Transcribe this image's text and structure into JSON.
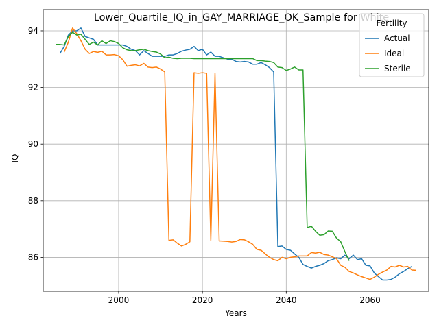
{
  "chart_data": {
    "type": "line",
    "title": "Lower_Quartile_IQ_in_GAY_MARRIAGE_OK_Sample for White",
    "xlabel": "Years",
    "ylabel": "IQ",
    "xlim": [
      1982,
      2074
    ],
    "ylim": [
      84.8,
      94.75
    ],
    "xticks": [
      2000,
      2020,
      2040,
      2060
    ],
    "yticks": [
      86,
      88,
      90,
      92,
      94
    ],
    "grid": true,
    "legend": {
      "title": "Fertility",
      "placement": "top-right"
    },
    "series": [
      {
        "name": "Actual",
        "color": "#1f77b4",
        "x": [
          1986,
          1987,
          1988,
          1989,
          1990,
          1991,
          1992,
          1993,
          1994,
          1995,
          1996,
          1997,
          1998,
          1999,
          2000,
          2001,
          2002,
          2003,
          2004,
          2005,
          2006,
          2007,
          2008,
          2009,
          2010,
          2011,
          2012,
          2013,
          2014,
          2015,
          2016,
          2017,
          2018,
          2019,
          2020,
          2021,
          2022,
          2023,
          2024,
          2025,
          2026,
          2027,
          2028,
          2029,
          2030,
          2031,
          2032,
          2033,
          2034,
          2035,
          2036,
          2037,
          2038,
          2039,
          2040,
          2041,
          2042,
          2043,
          2044,
          2045,
          2046,
          2047,
          2048,
          2049,
          2050,
          2051,
          2052,
          2053,
          2054,
          2055,
          2056,
          2057,
          2058,
          2059,
          2060,
          2061,
          2062,
          2063,
          2064,
          2065,
          2066,
          2067,
          2068,
          2069,
          2070
        ],
        "values": [
          93.2,
          93.45,
          93.85,
          94.0,
          94.0,
          94.1,
          93.8,
          93.75,
          93.7,
          93.5,
          93.5,
          93.5,
          93.5,
          93.5,
          93.5,
          93.5,
          93.45,
          93.35,
          93.3,
          93.15,
          93.3,
          93.2,
          93.1,
          93.1,
          93.1,
          93.1,
          93.15,
          93.15,
          93.2,
          93.28,
          93.32,
          93.35,
          93.45,
          93.3,
          93.35,
          93.15,
          93.25,
          93.1,
          93.1,
          93.05,
          93.0,
          93.0,
          92.92,
          92.9,
          92.92,
          92.9,
          92.82,
          92.82,
          92.88,
          92.8,
          92.7,
          92.55,
          86.38,
          86.4,
          86.28,
          86.25,
          86.12,
          86.0,
          85.75,
          85.68,
          85.62,
          85.68,
          85.72,
          85.78,
          85.88,
          85.92,
          85.98,
          85.95,
          86.08,
          85.95,
          86.08,
          85.92,
          85.95,
          85.72,
          85.7,
          85.45,
          85.32,
          85.2,
          85.2,
          85.22,
          85.3,
          85.42,
          85.5,
          85.6,
          85.68
        ]
      },
      {
        "name": "Ideal",
        "color": "#ff7f0e",
        "x": [
          1987,
          1988,
          1989,
          1990,
          1991,
          1992,
          1993,
          1994,
          1995,
          1996,
          1997,
          1998,
          1999,
          2000,
          2001,
          2002,
          2003,
          2004,
          2005,
          2006,
          2007,
          2008,
          2009,
          2010,
          2011,
          2012,
          2013,
          2014,
          2015,
          2016,
          2017,
          2018,
          2019,
          2020,
          2021,
          2022,
          2023,
          2024,
          2025,
          2026,
          2027,
          2028,
          2029,
          2030,
          2031,
          2032,
          2033,
          2034,
          2035,
          2036,
          2037,
          2038,
          2039,
          2040,
          2041,
          2042,
          2043,
          2044,
          2045,
          2046,
          2047,
          2048,
          2049,
          2050,
          2051,
          2052,
          2053,
          2054,
          2055,
          2056,
          2057,
          2058,
          2059,
          2060,
          2061,
          2062,
          2063,
          2064,
          2065,
          2066,
          2067,
          2068,
          2069,
          2070
        ],
        "values": [
          93.25,
          93.6,
          94.1,
          93.9,
          93.65,
          93.35,
          93.2,
          93.27,
          93.24,
          93.28,
          93.15,
          93.15,
          93.16,
          93.12,
          92.98,
          92.75,
          92.78,
          92.8,
          92.76,
          92.85,
          92.72,
          92.7,
          92.72,
          92.65,
          92.55,
          86.6,
          86.62,
          86.5,
          86.4,
          86.46,
          86.55,
          92.52,
          92.5,
          92.52,
          92.5,
          86.6,
          92.5,
          86.58,
          86.57,
          86.56,
          86.54,
          86.56,
          86.63,
          86.62,
          86.55,
          86.46,
          86.28,
          86.25,
          86.12,
          86.0,
          85.92,
          85.88,
          86.0,
          85.95,
          86.0,
          86.02,
          86.05,
          86.05,
          86.05,
          86.17,
          86.15,
          86.18,
          86.1,
          86.08,
          86.02,
          85.95,
          85.72,
          85.65,
          85.5,
          85.45,
          85.38,
          85.32,
          85.27,
          85.22,
          85.3,
          85.4,
          85.48,
          85.55,
          85.68,
          85.66,
          85.72,
          85.66,
          85.68,
          85.55
        ],
        "xtail": [
          2071
        ],
        "ytail": [
          85.54
        ]
      },
      {
        "name": "Sterile",
        "color": "#2ca02c",
        "x": [
          1985,
          1986,
          1987,
          1988,
          1989,
          1990,
          1991,
          1992,
          1993,
          1994,
          1995,
          1996,
          1997,
          1998,
          1999,
          2000,
          2001,
          2002,
          2003,
          2004,
          2005,
          2006,
          2007,
          2008,
          2009,
          2010,
          2011,
          2012,
          2013,
          2014,
          2015,
          2016,
          2017,
          2018,
          2019,
          2020,
          2021,
          2022,
          2023,
          2024,
          2025,
          2026,
          2027,
          2028,
          2029,
          2030,
          2031,
          2032,
          2033,
          2034,
          2035,
          2036,
          2037,
          2038,
          2039,
          2040,
          2041,
          2042,
          2043,
          2044,
          2045,
          2046,
          2047,
          2048,
          2049,
          2050,
          2051,
          2052,
          2053,
          2054,
          2055
        ],
        "values": [
          93.52,
          93.52,
          93.5,
          93.8,
          93.95,
          93.85,
          93.88,
          93.7,
          93.52,
          93.6,
          93.5,
          93.65,
          93.55,
          93.65,
          93.62,
          93.55,
          93.4,
          93.33,
          93.3,
          93.3,
          93.33,
          93.35,
          93.3,
          93.27,
          93.25,
          93.18,
          93.05,
          93.07,
          93.03,
          93.02,
          93.03,
          93.03,
          93.03,
          93.02,
          93.02,
          93.02,
          93.02,
          93.02,
          93.02,
          93.02,
          93.02,
          93.02,
          93.02,
          93.02,
          93.02,
          93.02,
          93.02,
          93.02,
          92.95,
          92.95,
          92.93,
          92.92,
          92.88,
          92.72,
          92.7,
          92.6,
          92.65,
          92.72,
          92.62,
          92.62,
          87.05,
          87.1,
          86.92,
          86.78,
          86.8,
          86.93,
          86.92,
          86.68,
          86.55,
          86.2,
          85.88
        ]
      }
    ]
  }
}
